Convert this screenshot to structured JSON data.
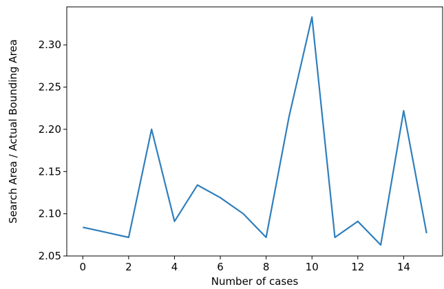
{
  "chart_data": {
    "type": "line",
    "title": "",
    "xlabel": "Number of cases",
    "ylabel": "Search Area / Actual Bounding Area",
    "x": [
      0,
      1,
      2,
      3,
      4,
      5,
      6,
      7,
      8,
      9,
      10,
      11,
      12,
      13,
      14,
      15
    ],
    "series": [
      {
        "values": [
          2.084,
          2.078,
          2.072,
          2.2,
          2.091,
          2.134,
          2.119,
          2.1,
          2.072,
          2.215,
          2.333,
          2.072,
          2.091,
          2.063,
          2.222,
          2.077
        ],
        "color": "#2f7ebc"
      }
    ],
    "xlim": [
      -0.7,
      15.7
    ],
    "ylim": [
      2.05,
      2.345
    ],
    "xticks": [
      0,
      2,
      4,
      6,
      8,
      10,
      12,
      14
    ],
    "yticks": [
      2.05,
      2.1,
      2.15,
      2.2,
      2.25,
      2.3
    ],
    "xtick_labels": [
      "0",
      "2",
      "4",
      "6",
      "8",
      "10",
      "12",
      "14"
    ],
    "ytick_labels": [
      "2.05",
      "2.10",
      "2.15",
      "2.20",
      "2.25",
      "2.30"
    ],
    "grid": false,
    "legend": "none"
  }
}
